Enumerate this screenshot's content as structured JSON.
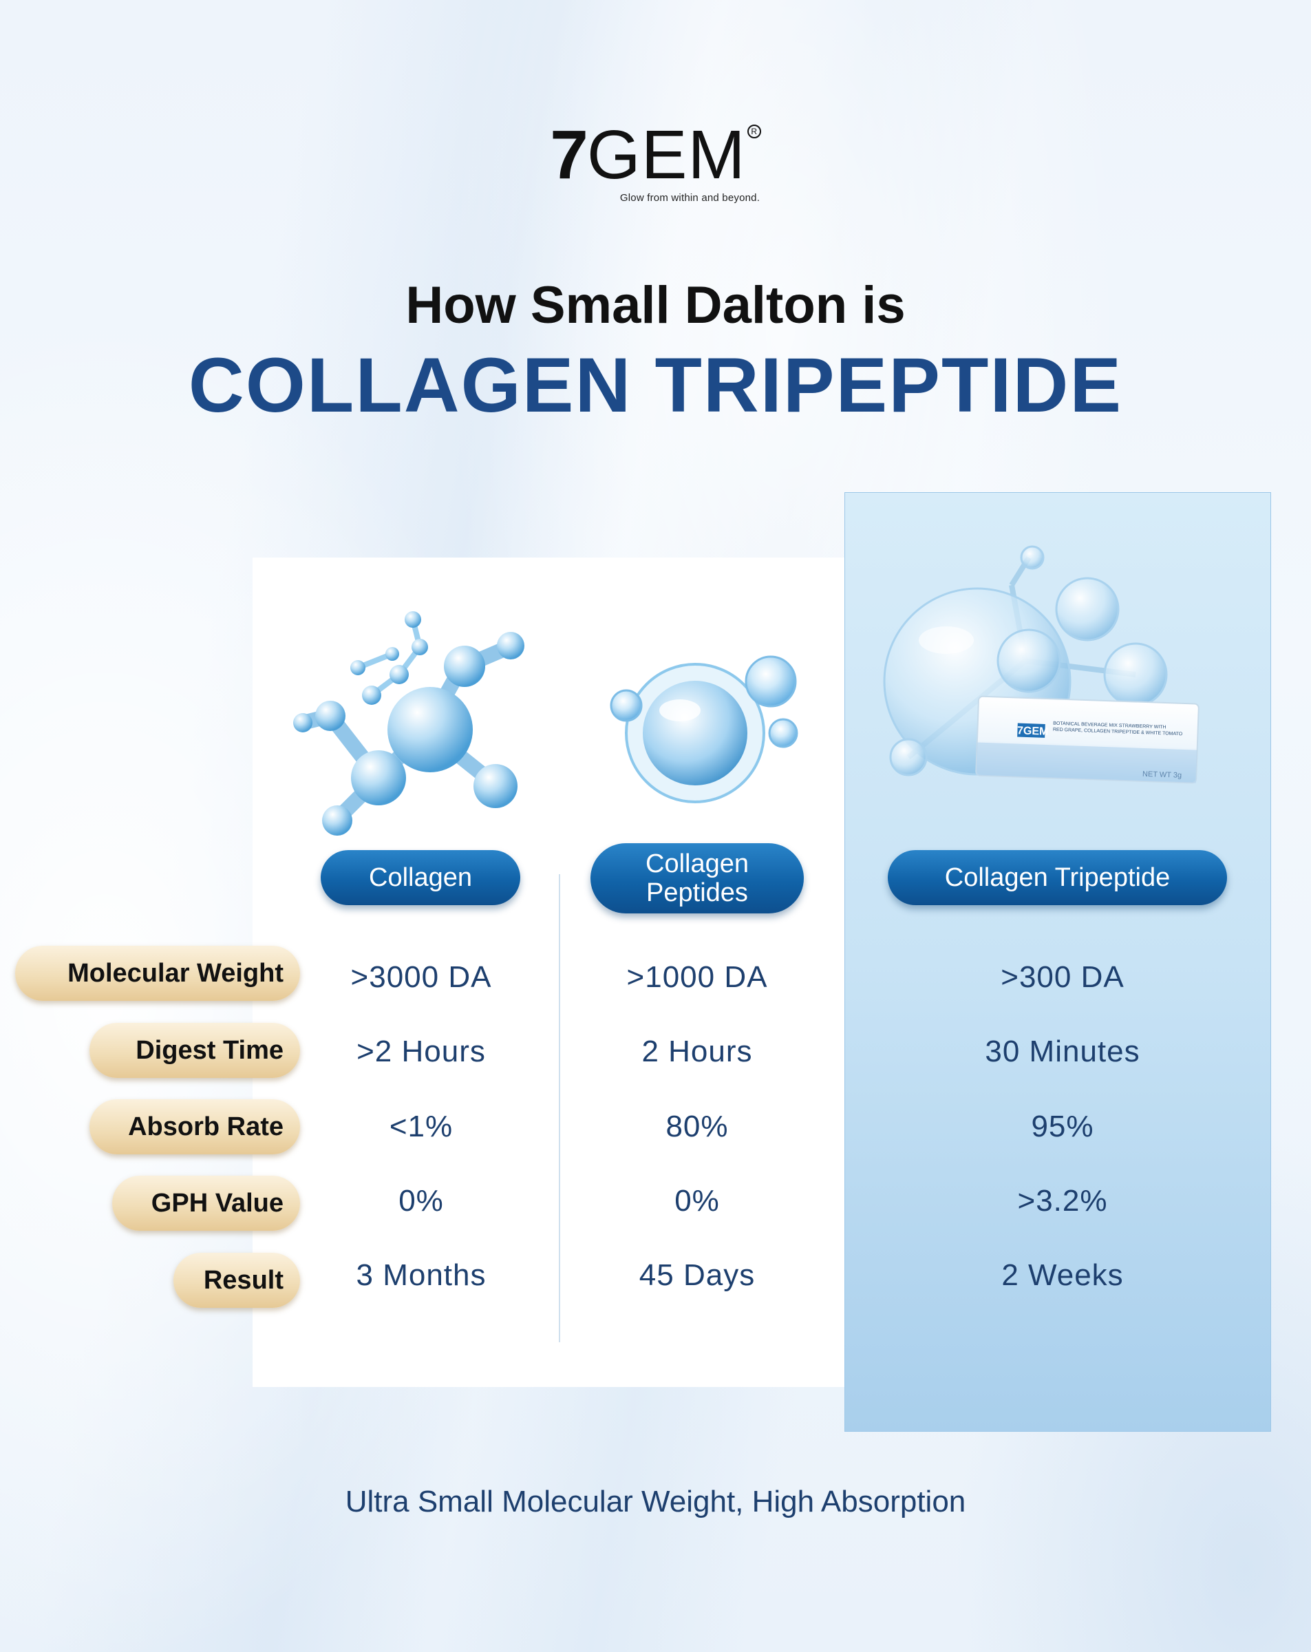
{
  "brand": {
    "logo_seven": "7",
    "logo_gem": "GEM",
    "logo_reg": "R",
    "tagline": "Glow from within and beyond."
  },
  "heading": {
    "line1": "How Small Dalton is",
    "line2": "COLLAGEN TRIPEPTIDE"
  },
  "columns": [
    {
      "label": "Collagen"
    },
    {
      "label_line1": "Collagen",
      "label_line2": "Peptides"
    },
    {
      "label": "Collagen Tripeptide"
    }
  ],
  "rows": [
    {
      "label": "Molecular Weight",
      "values": [
        ">3000 DA",
        ">1000 DA",
        ">300 DA"
      ]
    },
    {
      "label": "Digest Time",
      "values": [
        ">2 Hours",
        "2 Hours",
        "30 Minutes"
      ]
    },
    {
      "label": "Absorb Rate",
      "values": [
        "<1%",
        "80%",
        "95%"
      ]
    },
    {
      "label": "GPH Value",
      "values": [
        "0%",
        "0%",
        ">3.2%"
      ]
    },
    {
      "label": "Result",
      "values": [
        "3 Months",
        "45 Days",
        "2 Weeks"
      ]
    }
  ],
  "packet": {
    "brand": "7GEM",
    "text_line1": "BOTANICAL BEVERAGE MIX STRAWBERRY WITH",
    "text_line2": "RED GRAPE, COLLAGEN TRIPEPTIDE & WHITE TOMATO",
    "net": "NET WT 3g"
  },
  "footer": "Ultra Small Molecular Weight, High Absorption",
  "colors": {
    "title_blue": "#1d4a88",
    "pill_blue": "#1163a8",
    "pill_gold": "#f0dcb4",
    "value_text": "#1d3f6e"
  },
  "icons": {
    "col1": "collagen-molecule-icon",
    "col2": "peptide-bubble-icon",
    "col3": "tripeptide-molecule-icon"
  }
}
